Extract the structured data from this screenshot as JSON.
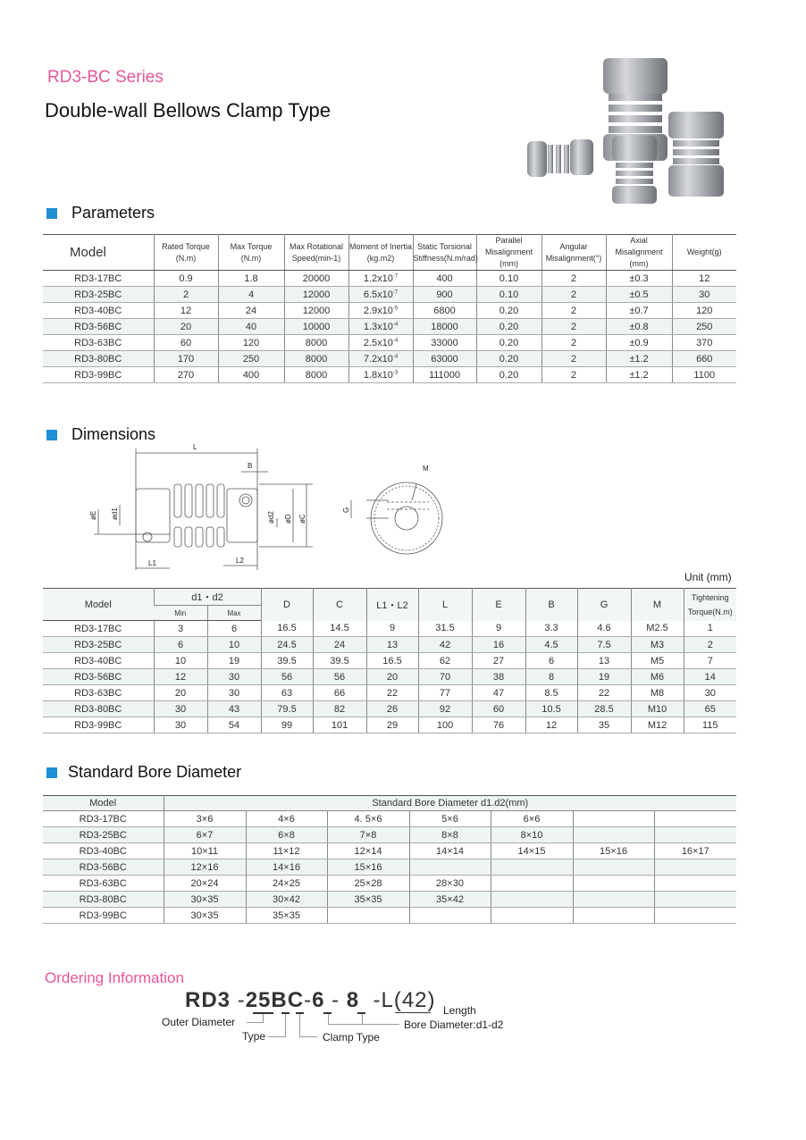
{
  "header": {
    "series": "RD3-BC Series",
    "title": "Double-wall Bellows Clamp Type"
  },
  "parameters": {
    "heading": "Parameters",
    "columns": [
      [
        "Model"
      ],
      [
        "Rated Torque",
        "(N.m)"
      ],
      [
        "Max Torque",
        "(N.m)"
      ],
      [
        "Max Rotational",
        "Speed(min-1)"
      ],
      [
        "Moment of Inertia",
        "(kg.m2)"
      ],
      [
        "Static Torsional",
        "Stiffness(N.m/rad)"
      ],
      [
        "Parallel Misalignment",
        "(mm)"
      ],
      [
        "Angular",
        "Misalignment(°)"
      ],
      [
        "Axial Misalignment",
        "(mm)"
      ],
      [
        "Weight(g)"
      ]
    ],
    "rows": [
      [
        "RD3-17BC",
        "0.9",
        "1.8",
        "20000",
        [
          "1.2x10",
          "-7"
        ],
        "400",
        "0.10",
        "2",
        "±0.3",
        "12"
      ],
      [
        "RD3-25BC",
        "2",
        "4",
        "12000",
        [
          "6.5x10",
          "-7"
        ],
        "900",
        "0.10",
        "2",
        "±0.5",
        "30"
      ],
      [
        "RD3-40BC",
        "12",
        "24",
        "12000",
        [
          "2.9x10",
          "-5"
        ],
        "6800",
        "0.20",
        "2",
        "±0.7",
        "120"
      ],
      [
        "RD3-56BC",
        "20",
        "40",
        "10000",
        [
          "1.3x10",
          "-4"
        ],
        "18000",
        "0.20",
        "2",
        "±0.8",
        "250"
      ],
      [
        "RD3-63BC",
        "60",
        "120",
        "8000",
        [
          "2.5x10",
          "-4"
        ],
        "33000",
        "0.20",
        "2",
        "±0.9",
        "370"
      ],
      [
        "RD3-80BC",
        "170",
        "250",
        "8000",
        [
          "7.2x10",
          "-4"
        ],
        "63000",
        "0.20",
        "2",
        "±1.2",
        "660"
      ],
      [
        "RD3-99BC",
        "270",
        "400",
        "8000",
        [
          "1.8x10",
          "-3"
        ],
        "111000",
        "0.20",
        "2",
        "±1.2",
        "1100"
      ]
    ]
  },
  "dimensions": {
    "heading": "Dimensions",
    "diagram_labels": {
      "L": "L",
      "B": "B",
      "M": "M",
      "E": "øE",
      "d1": "ød1",
      "d2": "ød2",
      "D": "øD",
      "C": "øC",
      "L1": "L1",
      "L2": "L2",
      "G": "G"
    },
    "unit": "Unit (mm)",
    "columns": [
      "Model",
      "d1・d2",
      "D",
      "C",
      "L1・L2",
      "L",
      "E",
      "B",
      "G",
      "M",
      [
        "Tightening",
        "Torque(N.m)"
      ]
    ],
    "sub_columns": [
      "Min",
      "Max"
    ],
    "rows": [
      [
        "RD3-17BC",
        "3",
        "6",
        "16.5",
        "14.5",
        "9",
        "31.5",
        "9",
        "3.3",
        "4.6",
        "M2.5",
        "1"
      ],
      [
        "RD3-25BC",
        "6",
        "10",
        "24.5",
        "24",
        "13",
        "42",
        "16",
        "4.5",
        "7.5",
        "M3",
        "2"
      ],
      [
        "RD3-40BC",
        "10",
        "19",
        "39.5",
        "39.5",
        "16.5",
        "62",
        "27",
        "6",
        "13",
        "M5",
        "7"
      ],
      [
        "RD3-56BC",
        "12",
        "30",
        "56",
        "56",
        "20",
        "70",
        "38",
        "8",
        "19",
        "M6",
        "14"
      ],
      [
        "RD3-63BC",
        "20",
        "30",
        "63",
        "66",
        "22",
        "77",
        "47",
        "8.5",
        "22",
        "M8",
        "30"
      ],
      [
        "RD3-80BC",
        "30",
        "43",
        "79.5",
        "82",
        "26",
        "92",
        "60",
        "10.5",
        "28.5",
        "M10",
        "65"
      ],
      [
        "RD3-99BC",
        "30",
        "54",
        "99",
        "101",
        "29",
        "100",
        "76",
        "12",
        "35",
        "M12",
        "115"
      ]
    ]
  },
  "bore": {
    "heading": "Standard Bore Diameter",
    "columns": [
      "Model",
      "Standard Bore Diameter d1.d2(mm)"
    ],
    "rows": [
      [
        "RD3-17BC",
        "3×6",
        "4×6",
        "4. 5×6",
        "5×6",
        "6×6",
        "",
        ""
      ],
      [
        "RD3-25BC",
        "6×7",
        "6×8",
        "7×8",
        "8×8",
        "8×10",
        "",
        ""
      ],
      [
        "RD3-40BC",
        "10×11",
        "11×12",
        "12×14",
        "14×14",
        "14×15",
        "15×16",
        "16×17"
      ],
      [
        "RD3-56BC",
        "12×16",
        "14×16",
        "15×16",
        "",
        "",
        "",
        ""
      ],
      [
        "RD3-63BC",
        "20×24",
        "24×25",
        "25×28",
        "28×30",
        "",
        "",
        ""
      ],
      [
        "RD3-80BC",
        "30×35",
        "30×42",
        "35×35",
        "35×42",
        "",
        "",
        ""
      ],
      [
        "RD3-99BC",
        "30×35",
        "35×35",
        "",
        "",
        "",
        "",
        ""
      ]
    ]
  },
  "ordering": {
    "heading": "Ordering Information",
    "code": {
      "prefix": "RD3",
      "sep1": "-",
      "size": "25",
      "type": "B",
      "clamp": "C",
      "sep2": "-",
      "d1": "6",
      "sep3": "-",
      "d2": "8",
      "sep4": "-",
      "length": "L(42)"
    },
    "labels": {
      "outer_diameter": "Outer Diameter",
      "type": "Type",
      "clamp_type": "Clamp Type",
      "bore": "Bore Diameter:d1-d2",
      "length": "Length"
    }
  },
  "colors": {
    "series": "#e8559a",
    "accent": "#1f8fd6",
    "ordering": "#e8559a",
    "row_alt": "#eef4f4"
  }
}
